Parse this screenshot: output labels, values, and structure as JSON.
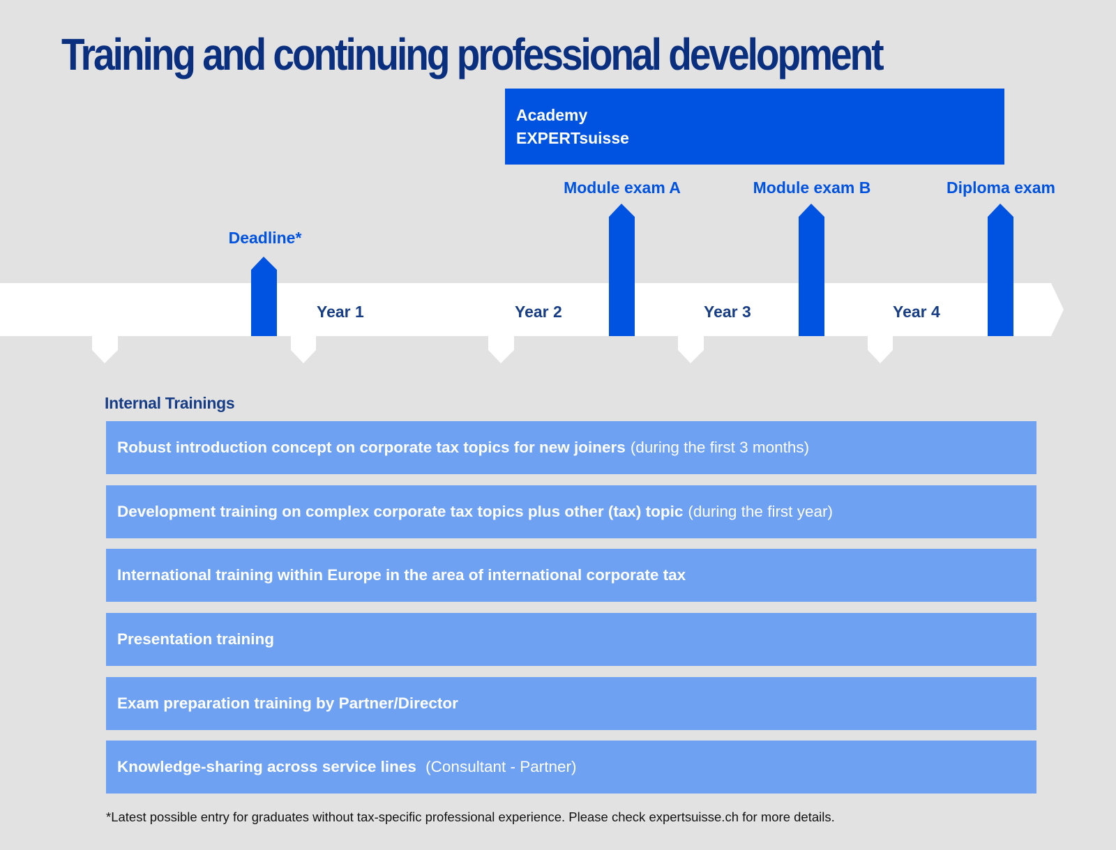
{
  "title": "Training and continuing professional development",
  "academy": {
    "line1": "Academy",
    "line2": "EXPERTsuisse"
  },
  "milestones": [
    {
      "id": "deadline",
      "label": "Deadline*"
    },
    {
      "id": "module-a",
      "label": "Module exam A"
    },
    {
      "id": "module-b",
      "label": "Module exam B"
    },
    {
      "id": "diploma",
      "label": "Diploma exam"
    }
  ],
  "years": [
    "Year 1",
    "Year 2",
    "Year 3",
    "Year 4"
  ],
  "internal": {
    "heading": "Internal Trainings",
    "rows": [
      {
        "bold": "Robust introduction concept on corporate tax topics for new joiners",
        "note": "(during the first 3 months)"
      },
      {
        "bold": "Development training on complex corporate tax topics plus other (tax) topic",
        "note": "(during the first year)"
      },
      {
        "bold": "International training within Europe in the area of international corporate tax",
        "note": ""
      },
      {
        "bold": "Presentation training",
        "note": ""
      },
      {
        "bold": "Exam preparation training by Partner/Director",
        "note": ""
      },
      {
        "bold": "Knowledge-sharing across service lines",
        "note": " (Consultant - Partner)"
      }
    ]
  },
  "footnote": "*Latest possible entry for graduates without tax-specific professional experience. Please check expertsuisse.ch for more details.",
  "colors": {
    "background": "#e2e2e2",
    "title": "#0a2f7e",
    "accent_blue": "#0052e1",
    "training_row": "#6ea1f2",
    "year_text": "#173d86",
    "timeline_band": "#ffffff"
  }
}
